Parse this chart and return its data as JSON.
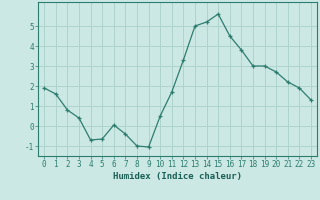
{
  "xlabel": "Humidex (Indice chaleur)",
  "ylabel": "",
  "x": [
    0,
    1,
    2,
    3,
    4,
    5,
    6,
    7,
    8,
    9,
    10,
    11,
    12,
    13,
    14,
    15,
    16,
    17,
    18,
    19,
    20,
    21,
    22,
    23
  ],
  "y": [
    1.9,
    1.6,
    0.8,
    0.4,
    -0.7,
    -0.65,
    0.05,
    -0.4,
    -1.0,
    -1.05,
    0.5,
    1.7,
    3.3,
    5.0,
    5.2,
    5.6,
    4.5,
    3.8,
    3.0,
    3.0,
    2.7,
    2.2,
    1.9,
    1.3
  ],
  "ylim": [
    -1.5,
    6.2
  ],
  "xlim": [
    -0.5,
    23.5
  ],
  "yticks": [
    -1,
    0,
    1,
    2,
    3,
    4,
    5
  ],
  "xticks": [
    0,
    1,
    2,
    3,
    4,
    5,
    6,
    7,
    8,
    9,
    10,
    11,
    12,
    13,
    14,
    15,
    16,
    17,
    18,
    19,
    20,
    21,
    22,
    23
  ],
  "line_color": "#2d7d6e",
  "marker": "+",
  "bg_color": "#cce8e4",
  "grid_color": "#afd4ce",
  "axis_color": "#2d7d6e",
  "text_color": "#1a5f55",
  "font_family": "monospace",
  "tick_fontsize": 5.5,
  "xlabel_fontsize": 6.5
}
